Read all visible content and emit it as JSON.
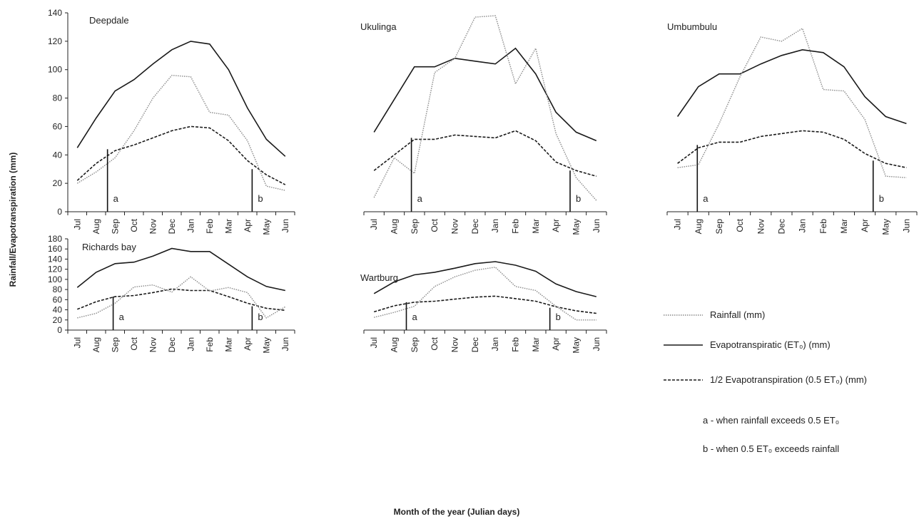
{
  "figure": {
    "ylabel": "Rainfall/Evapotranspiration  (mm)",
    "xlabel": "Month of the year (Julian days)"
  },
  "legend": {
    "rainfall": "Rainfall (mm)",
    "et": "Evapotranspiratic (ET₀) (mm)",
    "half_et": "1/2 Evapotranspiration (0.5 ET₀)  (mm)",
    "note_a": "a - when rainfall exceeds 0.5 ET₀",
    "note_b": "b - when 0.5 ET₀ exceeds rainfall"
  },
  "series_styles": {
    "rainfall": {
      "color": "#8a8a8a",
      "dash": "1.5,1.5"
    },
    "et": {
      "color": "#1a1a1a",
      "dash": ""
    },
    "half_et": {
      "color": "#1a1a1a",
      "dash": "4,2"
    }
  },
  "chart_data": [
    {
      "type": "line",
      "title": "Deepdale",
      "categories": [
        "Jul",
        "Aug",
        "Sep",
        "Oct",
        "Nov",
        "Dec",
        "Jan",
        "Feb",
        "Mar",
        "Apr",
        "May",
        "Jun"
      ],
      "ylim": [
        0,
        140
      ],
      "yticks": [
        0,
        20,
        40,
        60,
        80,
        100,
        120,
        140
      ],
      "show_yticks": true,
      "series": [
        {
          "name": "Rainfall (mm)",
          "key": "rainfall",
          "values": [
            20,
            28,
            38,
            57,
            80,
            96,
            95,
            70,
            68,
            50,
            18,
            15
          ]
        },
        {
          "name": "Evapotranspiratic (ET₀) (mm)",
          "key": "et",
          "values": [
            45,
            66,
            85,
            93,
            104,
            114,
            120,
            118,
            100,
            73,
            51,
            39
          ]
        },
        {
          "name": "1/2 Evapotranspiration (0.5 ET₀)  (mm)",
          "key": "half_et",
          "values": [
            22,
            34,
            43,
            47,
            52,
            57,
            60,
            59,
            50,
            36,
            26,
            19
          ]
        }
      ],
      "markers": [
        {
          "label": "a",
          "x": 2.1,
          "y": 44
        },
        {
          "label": "b",
          "x": 9.75,
          "y": 30
        }
      ]
    },
    {
      "type": "line",
      "title": "Ukulinga",
      "categories": [
        "Jul",
        "Aug",
        "Sep",
        "Oct",
        "Nov",
        "Dec",
        "Jan",
        "Feb",
        "Mar",
        "Apr",
        "May",
        "Jun"
      ],
      "ylim": [
        0,
        140
      ],
      "yticks": [
        0,
        20,
        40,
        60,
        80,
        100,
        120,
        140
      ],
      "show_yticks": false,
      "series": [
        {
          "name": "Rainfall (mm)",
          "key": "rainfall",
          "values": [
            10,
            38,
            27,
            98,
            108,
            137,
            138,
            90,
            115,
            55,
            24,
            8
          ]
        },
        {
          "name": "Evapotranspiratic (ET₀) (mm)",
          "key": "et",
          "values": [
            56,
            79,
            102,
            102,
            108,
            106,
            104,
            115,
            97,
            70,
            56,
            50
          ]
        },
        {
          "name": "1/2 Evapotranspiration (0.5 ET₀)  (mm)",
          "key": "half_et",
          "values": [
            29,
            40,
            51,
            51,
            54,
            53,
            52,
            57,
            50,
            35,
            29,
            25
          ]
        }
      ],
      "markers": [
        {
          "label": "a",
          "x": 2.35,
          "y": 52
        },
        {
          "label": "b",
          "x": 10.2,
          "y": 29
        }
      ]
    },
    {
      "type": "line",
      "title": "Umbumbulu",
      "categories": [
        "Jul",
        "Aug",
        "Sep",
        "Oct",
        "Nov",
        "Dec",
        "Jan",
        "Feb",
        "Mar",
        "Apr",
        "May",
        "Jun"
      ],
      "ylim": [
        0,
        140
      ],
      "yticks": [
        0,
        20,
        40,
        60,
        80,
        100,
        120,
        140
      ],
      "show_yticks": false,
      "series": [
        {
          "name": "Rainfall (mm)",
          "key": "rainfall",
          "values": [
            31,
            33,
            62,
            95,
            123,
            120,
            129,
            86,
            85,
            65,
            25,
            24
          ]
        },
        {
          "name": "Evapotranspiratic (ET₀) (mm)",
          "key": "et",
          "values": [
            67,
            88,
            97,
            97,
            104,
            110,
            114,
            112,
            102,
            81,
            67,
            62
          ]
        },
        {
          "name": "1/2 Evapotranspiration (0.5 ET₀)  (mm)",
          "key": "half_et",
          "values": [
            34,
            45,
            49,
            49,
            53,
            55,
            57,
            56,
            51,
            41,
            34,
            31
          ]
        }
      ],
      "markers": [
        {
          "label": "a",
          "x": 1.45,
          "y": 47
        },
        {
          "label": "b",
          "x": 9.9,
          "y": 36
        }
      ]
    },
    {
      "type": "line",
      "title": "Richards bay",
      "categories": [
        "Jul",
        "Aug",
        "Sep",
        "Oct",
        "Nov",
        "Dec",
        "Jan",
        "Feb",
        "Mar",
        "Apr",
        "May",
        "Jun"
      ],
      "ylim": [
        0,
        180
      ],
      "yticks": [
        0,
        20,
        40,
        60,
        80,
        100,
        120,
        140,
        160,
        180
      ],
      "show_yticks": true,
      "series": [
        {
          "name": "Rainfall (mm)",
          "key": "rainfall",
          "values": [
            24,
            33,
            53,
            85,
            89,
            75,
            105,
            77,
            84,
            74,
            24,
            46
          ]
        },
        {
          "name": "Evapotranspiratic (ET₀) (mm)",
          "key": "et",
          "values": [
            84,
            114,
            131,
            134,
            146,
            161,
            155,
            155,
            130,
            105,
            86,
            78
          ]
        },
        {
          "name": "1/2 Evapotranspiration (0.5 ET₀)  (mm)",
          "key": "half_et",
          "values": [
            41,
            56,
            66,
            68,
            74,
            81,
            78,
            78,
            66,
            53,
            43,
            39
          ]
        }
      ],
      "markers": [
        {
          "label": "a",
          "x": 2.4,
          "y": 66
        },
        {
          "label": "b",
          "x": 9.75,
          "y": 47
        }
      ]
    },
    {
      "type": "line",
      "title": "Wartburg",
      "categories": [
        "Jul",
        "Aug",
        "Sep",
        "Oct",
        "Nov",
        "Dec",
        "Jan",
        "Feb",
        "Mar",
        "Apr",
        "May",
        "Jun"
      ],
      "ylim": [
        0,
        180
      ],
      "yticks": [
        0,
        20,
        40,
        60,
        80,
        100,
        120,
        140,
        160,
        180
      ],
      "show_yticks": false,
      "series": [
        {
          "name": "Rainfall (mm)",
          "key": "rainfall",
          "values": [
            25,
            35,
            47,
            86,
            105,
            118,
            124,
            86,
            78,
            47,
            20,
            20
          ]
        },
        {
          "name": "Evapotranspiratic (ET₀) (mm)",
          "key": "et",
          "values": [
            72,
            95,
            109,
            114,
            122,
            131,
            135,
            128,
            116,
            91,
            76,
            66
          ]
        },
        {
          "name": "1/2 Evapotranspiration (0.5 ET₀)  (mm)",
          "key": "half_et",
          "values": [
            36,
            48,
            55,
            57,
            61,
            65,
            67,
            62,
            57,
            46,
            38,
            33
          ]
        }
      ],
      "markers": [
        {
          "label": "a",
          "x": 2.1,
          "y": 55
        },
        {
          "label": "b",
          "x": 9.2,
          "y": 44
        }
      ]
    }
  ]
}
